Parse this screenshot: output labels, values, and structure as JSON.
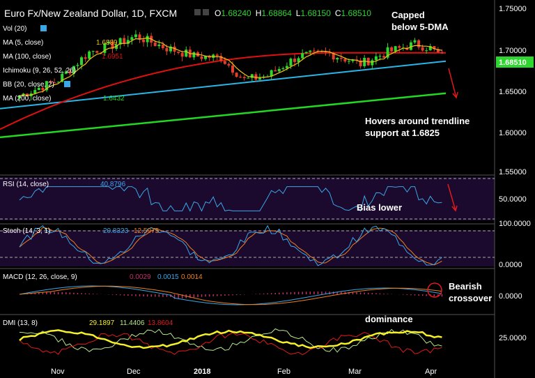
{
  "header": {
    "symbol": "Euro Fx/New Zealand Dollar, 1D, FXCM",
    "o_label": "O",
    "o": "1.68240",
    "h_label": "H",
    "h": "1.68864",
    "l_label": "L",
    "l": "1.68150",
    "c_label": "C",
    "c": "1.68510"
  },
  "indicators": {
    "vol": "Vol (20)",
    "ma5": "MA (5, close)",
    "ma5_val": "1.6889",
    "ma100": "MA (100, close)",
    "ma100_val": "1.6951",
    "ichimoku": "Ichimoku (9, 26, 52, 26)",
    "bb": "BB (20, close, 2)",
    "ma200": "MA (200, close)",
    "ma200_val": "1.6432"
  },
  "annotations": {
    "capped_line1": "Capped",
    "capped_line2": "below 5-DMA",
    "hovers_line1": "Hovers around trendline",
    "hovers_line2": "support at 1.6825",
    "bias": "Bias lower",
    "bearish_line1": "Bearish",
    "bearish_line2": "crossover",
    "dominance": "dominance"
  },
  "panels": {
    "rsi": {
      "label": "RSI (14, close)",
      "value": "40.8796",
      "tick": "50.0000"
    },
    "stoch": {
      "label": "Stoch (14, 3, 1)",
      "k": "20.8323",
      "d": "12.5975",
      "tick_top": "100.0000",
      "tick_bottom": "0.0000"
    },
    "macd": {
      "label": "MACD (12, 26, close, 9)",
      "hist": "0.0029",
      "macd": "0.0015",
      "signal": "0.0014",
      "tick": "0.0000"
    },
    "dmi": {
      "label": "DMI (13, 8)",
      "adx": "29.1897",
      "plus": "11.4406",
      "minus": "13.8604",
      "tick": "25.0000"
    }
  },
  "price_box": "1.68510",
  "colors": {
    "up": "#2fd62f",
    "down": "#e0402c",
    "ma5": "#f0c419",
    "ma100": "#e01010",
    "ma200": "#22d822",
    "trend": "#29b6e8",
    "rsi": "#3aa7e8",
    "rsi_bg": "#1e0d33",
    "stoch_k": "#3aa7e8",
    "stoch_d": "#f08020",
    "macd_hist": "#c0306a",
    "adx": "#f5f028",
    "plus_di": "#b8e88a",
    "minus_di": "#e01a1a"
  },
  "chart_data": {
    "type": "candlestick",
    "xlabels": [
      "Nov",
      "Dec",
      "2018",
      "Feb",
      "Mar",
      "Apr"
    ],
    "ylabels": [
      "1.75000",
      "1.70000",
      "1.65000",
      "1.60000",
      "1.55000"
    ],
    "ylim": [
      1.545,
      1.755
    ],
    "ma5_last": 1.6889,
    "ma100_last": 1.6951,
    "ma200_last": 1.6432,
    "trendline_support": 1.6825,
    "last_close": 1.6851
  }
}
